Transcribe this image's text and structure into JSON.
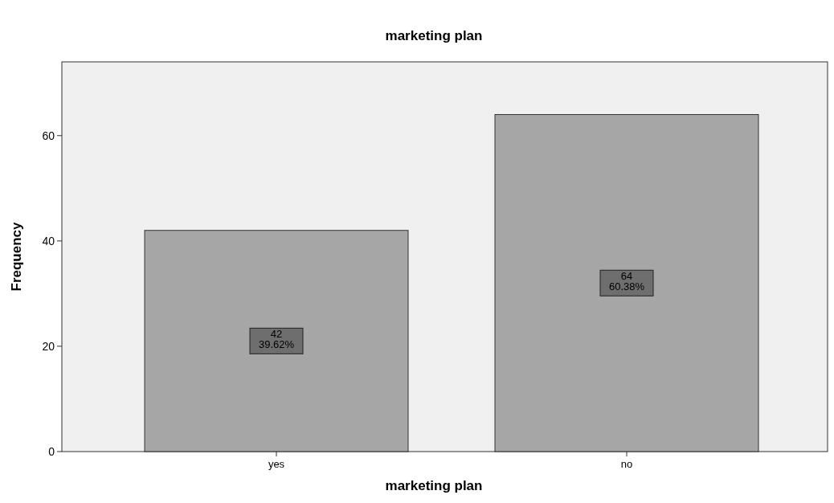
{
  "chart_data": {
    "type": "bar",
    "title": "marketing plan",
    "xlabel": "marketing plan",
    "ylabel": "Frequency",
    "categories": [
      "yes",
      "no"
    ],
    "values": [
      42,
      64
    ],
    "value_labels": [
      "42\n39.62%",
      "64\n60.38%"
    ],
    "color": "#a6a6a6",
    "ylim": [
      0,
      74
    ],
    "yticks": [
      0,
      20,
      40,
      60
    ],
    "grid": false
  }
}
